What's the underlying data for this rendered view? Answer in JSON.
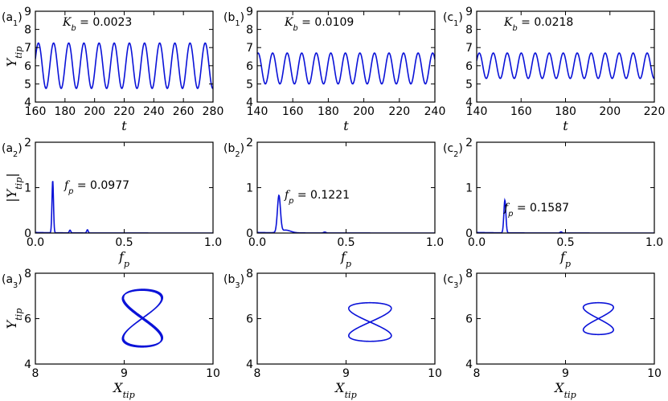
{
  "colors": {
    "line": "#0a12d8",
    "axis": "#000000"
  },
  "chart_data": [
    {
      "id": "a1",
      "type": "line",
      "tag": "(a",
      "tag_sub": "1",
      "tag_close": ")",
      "annotation": {
        "var": "K",
        "sub": "b",
        "text": " = 0.0023"
      },
      "xlabel": "t",
      "xlabel_sub": "",
      "ylabel": "Y",
      "ylabel_sub": "tip",
      "xlim": [
        160,
        280
      ],
      "ylim": [
        4,
        9
      ],
      "xticks": [
        160,
        180,
        200,
        220,
        240,
        260,
        280
      ],
      "yticks": [
        4,
        5,
        6,
        7,
        8,
        9
      ],
      "series": [
        {
          "kind": "sine",
          "mean": 6.0,
          "amp": 1.25,
          "period": 10.24,
          "phase": 0.3
        }
      ]
    },
    {
      "id": "b1",
      "type": "line",
      "tag": "(b",
      "tag_sub": "1",
      "tag_close": ")",
      "annotation": {
        "var": "K",
        "sub": "b",
        "text": " = 0.0109"
      },
      "xlabel": "t",
      "xlabel_sub": "",
      "ylabel": "",
      "ylabel_sub": "",
      "xlim": [
        140,
        240
      ],
      "ylim": [
        4,
        9
      ],
      "xticks": [
        140,
        160,
        180,
        200,
        220,
        240
      ],
      "yticks": [
        4,
        5,
        6,
        7,
        8,
        9
      ],
      "series": [
        {
          "kind": "sine",
          "mean": 5.85,
          "amp": 0.85,
          "period": 8.19,
          "phase": 1.2
        }
      ]
    },
    {
      "id": "c1",
      "type": "line",
      "tag": "(c",
      "tag_sub": "1",
      "tag_close": ")",
      "annotation": {
        "var": "K",
        "sub": "b",
        "text": " = 0.0218"
      },
      "xlabel": "t",
      "xlabel_sub": "",
      "ylabel": "",
      "ylabel_sub": "",
      "xlim": [
        140,
        220
      ],
      "ylim": [
        4,
        9
      ],
      "xticks": [
        140,
        160,
        180,
        200,
        220
      ],
      "yticks": [
        4,
        5,
        6,
        7,
        8,
        9
      ],
      "series": [
        {
          "kind": "sine",
          "mean": 6.0,
          "amp": 0.7,
          "period": 6.3,
          "phase": 0.4
        }
      ]
    },
    {
      "id": "a2",
      "type": "line",
      "tag": "(a",
      "tag_sub": "2",
      "tag_close": ")",
      "annotation": {
        "var": "f",
        "sub": "p",
        "text": " = 0.0977"
      },
      "xlabel": "f",
      "xlabel_sub": "p",
      "ylabel": "|Y",
      "ylabel_sub": "tip",
      "ylabel_close": "|",
      "xlim": [
        0,
        1
      ],
      "ylim": [
        0,
        2
      ],
      "xticks": [
        0.0,
        0.5,
        1.0
      ],
      "xtick_labels": [
        "0.0",
        "0.5",
        "1.0"
      ],
      "yticks": [
        0,
        1,
        2
      ],
      "series": [
        {
          "kind": "peaks",
          "peaks": [
            [
              0.0977,
              1.15,
              0.006
            ],
            [
              0.195,
              0.06,
              0.006
            ],
            [
              0.293,
              0.07,
              0.006
            ]
          ]
        }
      ]
    },
    {
      "id": "b2",
      "type": "line",
      "tag": "(b",
      "tag_sub": "2",
      "tag_close": ")",
      "annotation": {
        "var": "f",
        "sub": "p",
        "text": " = 0.1221"
      },
      "xlabel": "f",
      "xlabel_sub": "p",
      "ylabel": "",
      "ylabel_sub": "",
      "xlim": [
        0,
        1
      ],
      "ylim": [
        0,
        2
      ],
      "xticks": [
        0.0,
        0.5,
        1.0
      ],
      "xtick_labels": [
        "0.0",
        "0.5",
        "1.0"
      ],
      "yticks": [
        0,
        1,
        2
      ],
      "series": [
        {
          "kind": "peaks",
          "peaks": [
            [
              0.1221,
              0.8,
              0.012
            ],
            [
              0.16,
              0.06,
              0.04
            ],
            [
              0.38,
              0.02,
              0.01
            ]
          ]
        }
      ]
    },
    {
      "id": "c2",
      "type": "line",
      "tag": "(c",
      "tag_sub": "2",
      "tag_close": ")",
      "annotation": {
        "var": "f",
        "sub": "p",
        "text": " = 0.1587"
      },
      "xlabel": "f",
      "xlabel_sub": "p",
      "ylabel": "",
      "ylabel_sub": "",
      "xlim": [
        0,
        1
      ],
      "ylim": [
        0,
        2
      ],
      "xticks": [
        0.0,
        0.5,
        1.0
      ],
      "xtick_labels": [
        "0.0",
        "0.5",
        "1.0"
      ],
      "yticks": [
        0,
        1,
        2
      ],
      "series": [
        {
          "kind": "peaks",
          "peaks": [
            [
              0.1587,
              0.72,
              0.008
            ],
            [
              0.475,
              0.025,
              0.008
            ]
          ]
        }
      ]
    },
    {
      "id": "a3",
      "type": "line",
      "tag": "(a",
      "tag_sub": "3",
      "tag_close": ")",
      "annotation": null,
      "xlabel": "X",
      "xlabel_sub": "tip",
      "ylabel": "Y",
      "ylabel_sub": "tip",
      "xlim": [
        8,
        10
      ],
      "ylim": [
        4,
        8
      ],
      "xticks": [
        8,
        9,
        10
      ],
      "yticks": [
        4,
        6,
        8
      ],
      "series": [
        {
          "kind": "lissajous",
          "cx": 9.2,
          "cy": 6.0,
          "ax": 0.22,
          "ay": 1.25,
          "loops": 3
        }
      ]
    },
    {
      "id": "b3",
      "type": "line",
      "tag": "(b",
      "tag_sub": "3",
      "tag_close": ")",
      "annotation": null,
      "xlabel": "X",
      "xlabel_sub": "tip",
      "ylabel": "",
      "ylabel_sub": "",
      "xlim": [
        8,
        10
      ],
      "ylim": [
        4,
        8
      ],
      "xticks": [
        8,
        9,
        10
      ],
      "yticks": [
        4,
        6,
        8
      ],
      "series": [
        {
          "kind": "lissajous",
          "cx": 9.27,
          "cy": 5.85,
          "ax": 0.24,
          "ay": 0.85,
          "loops": 1
        }
      ]
    },
    {
      "id": "c3",
      "type": "line",
      "tag": "(c",
      "tag_sub": "3",
      "tag_close": ")",
      "annotation": null,
      "xlabel": "X",
      "xlabel_sub": "tip",
      "ylabel": "",
      "ylabel_sub": "",
      "xlim": [
        8,
        10
      ],
      "ylim": [
        4,
        8
      ],
      "xticks": [
        8,
        9,
        10
      ],
      "yticks": [
        4,
        6,
        8
      ],
      "series": [
        {
          "kind": "lissajous",
          "cx": 9.37,
          "cy": 6.0,
          "ax": 0.17,
          "ay": 0.7,
          "loops": 1
        }
      ]
    }
  ]
}
